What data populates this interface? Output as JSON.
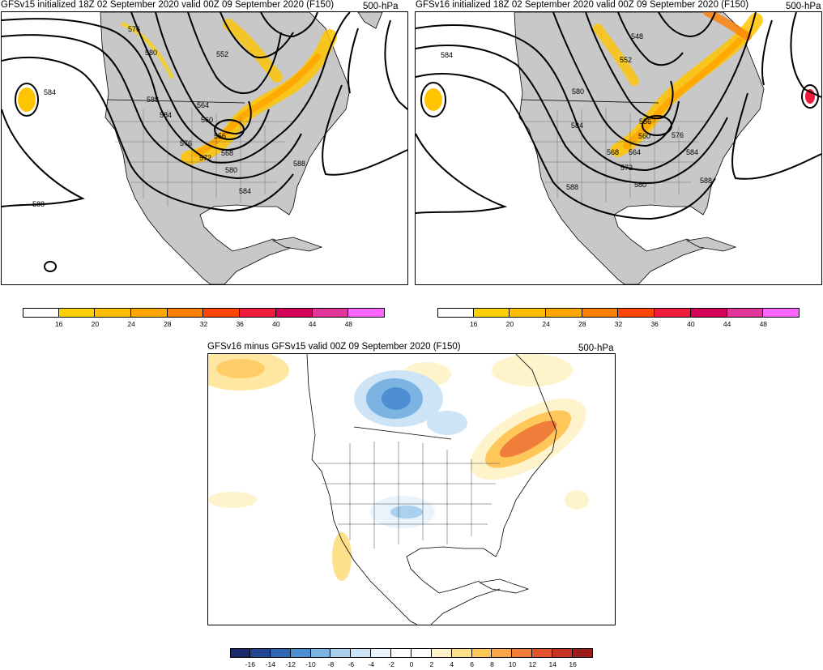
{
  "panels": {
    "top_left": {
      "title": "GFSv15 initialized 18Z 02 September 2020 valid 00Z 09 September 2020 (F150)",
      "level": "500-hPa",
      "contour_labels": [
        "576",
        "580",
        "584",
        "588",
        "584",
        "564",
        "560",
        "556",
        "576",
        "572",
        "568",
        "580",
        "584",
        "588",
        "588",
        "552"
      ]
    },
    "top_right": {
      "title": "GFSv16 initialized 18Z 02 September 2020 valid 00Z 09 September 2020 (F150)",
      "level": "500-hPa",
      "contour_labels": [
        "584",
        "548",
        "552",
        "580",
        "584",
        "556",
        "560",
        "568",
        "564",
        "572",
        "576",
        "584",
        "580",
        "588",
        "588"
      ]
    },
    "bottom": {
      "title": "GFSv16 minus GFSv15 valid 00Z 09 September 2020 (F150)",
      "level": "500-hPa"
    }
  },
  "colorbars": {
    "wind": {
      "colors": [
        "#ffffff",
        "#ffd000",
        "#ffbf00",
        "#ffa500",
        "#ff7f00",
        "#ff4500",
        "#ee1c3a",
        "#d6005a",
        "#e0369a",
        "#ff66ff"
      ],
      "labels": [
        "16",
        "20",
        "24",
        "28",
        "32",
        "36",
        "40",
        "44",
        "48"
      ]
    },
    "diff": {
      "colors": [
        "#1a2a6c",
        "#22468f",
        "#2f66b5",
        "#4d8fd1",
        "#7bb3e3",
        "#a9d1ef",
        "#cce4f6",
        "#e8f3fb",
        "#ffffff",
        "#ffffff",
        "#fff3cc",
        "#ffe08a",
        "#ffc75a",
        "#fda54a",
        "#f07d3a",
        "#e0552e",
        "#c63325",
        "#9c1c1a"
      ],
      "labels": [
        "-16",
        "-14",
        "-12",
        "-10",
        "-8",
        "-6",
        "-4",
        "-2",
        "0",
        "2",
        "4",
        "6",
        "8",
        "10",
        "12",
        "14",
        "16"
      ]
    }
  }
}
